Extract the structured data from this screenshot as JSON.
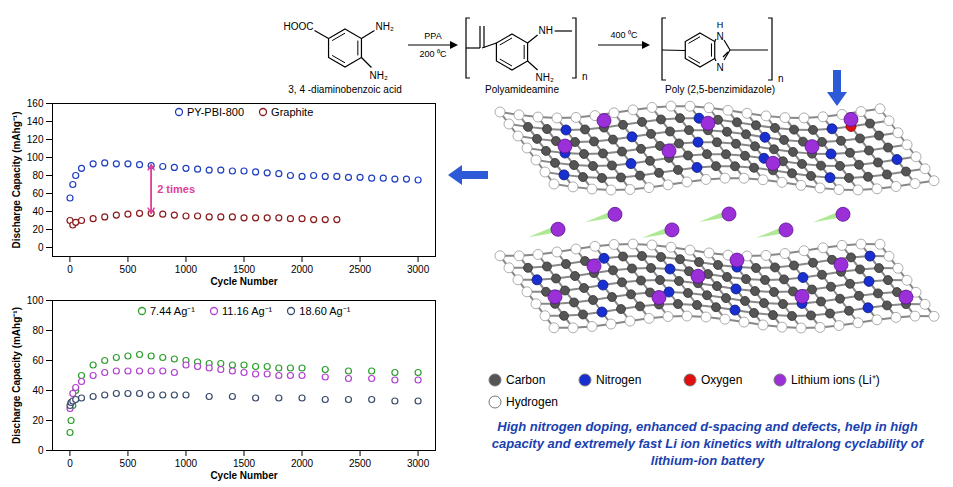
{
  "chart_data": [
    {
      "type": "scatter",
      "x_label": "Cycle Number",
      "y_label": "Discharge Capacity (mAhg⁻¹)",
      "xlim": [
        -150,
        3150
      ],
      "xticks": [
        0,
        500,
        1000,
        1500,
        2000,
        2500,
        3000
      ],
      "ylim": [
        -10,
        160
      ],
      "yticks": [
        0,
        20,
        40,
        60,
        80,
        100,
        120,
        140,
        160
      ],
      "grid": false,
      "legend": "top",
      "series": [
        {
          "name": "PY-PBI-800",
          "color": "#1f3fbf",
          "marker": "open_circle",
          "x": [
            1,
            25,
            50,
            100,
            200,
            300,
            400,
            500,
            600,
            700,
            800,
            900,
            1000,
            1100,
            1200,
            1300,
            1400,
            1500,
            1600,
            1700,
            1800,
            1900,
            2000,
            2100,
            2200,
            2300,
            2400,
            2500,
            2600,
            2700,
            2800,
            2900,
            3000
          ],
          "values": [
            55,
            70,
            80,
            88,
            93,
            94,
            93,
            93,
            92,
            91,
            90,
            89,
            88,
            87,
            86,
            86,
            85,
            85,
            84,
            83,
            82,
            80,
            79,
            80,
            79,
            79,
            78,
            78,
            77,
            77,
            76,
            76,
            75
          ]
        },
        {
          "name": "Graphite",
          "color": "#8b1a1a",
          "marker": "open_circle",
          "x": [
            1,
            25,
            50,
            100,
            200,
            300,
            400,
            500,
            600,
            700,
            800,
            900,
            1000,
            1100,
            1200,
            1300,
            1400,
            1500,
            1600,
            1700,
            1800,
            1900,
            2000,
            2100,
            2200,
            2300
          ],
          "values": [
            30,
            25,
            28,
            30,
            32,
            34,
            36,
            37,
            38,
            38,
            37,
            36,
            35,
            35,
            34,
            34,
            34,
            33,
            33,
            33,
            33,
            32,
            32,
            31,
            31,
            31
          ]
        }
      ],
      "annotations": [
        {
          "text": "2 times",
          "x": 700,
          "y": 65,
          "y_from": 38,
          "y_to": 92,
          "color": "#e0409a"
        }
      ]
    },
    {
      "type": "scatter",
      "x_label": "Cycle Number",
      "y_label": "Discharge Capacity (mAhg⁻¹)",
      "xlim": [
        -150,
        3150
      ],
      "xticks": [
        0,
        500,
        1000,
        1500,
        2000,
        2500,
        3000
      ],
      "ylim": [
        0,
        100
      ],
      "yticks": [
        0,
        20,
        40,
        60,
        80,
        100
      ],
      "grid": false,
      "legend": "top",
      "series": [
        {
          "name": "7.44 Ag⁻¹",
          "color": "#2e9e2e",
          "marker": "open_circle",
          "x": [
            1,
            10,
            25,
            50,
            100,
            200,
            300,
            400,
            500,
            600,
            700,
            800,
            900,
            1000,
            1100,
            1200,
            1300,
            1400,
            1500,
            1600,
            1700,
            1800,
            1900,
            2000,
            2200,
            2400,
            2600,
            2800,
            3000
          ],
          "values": [
            12,
            20,
            30,
            40,
            50,
            57,
            60,
            62,
            63,
            64,
            63,
            62,
            61,
            60,
            59,
            58,
            58,
            57,
            57,
            56,
            56,
            55,
            55,
            55,
            54,
            53,
            53,
            52,
            52
          ]
        },
        {
          "name": "11.16 Ag⁻¹",
          "color": "#b040d0",
          "marker": "open_circle",
          "x": [
            1,
            10,
            25,
            50,
            100,
            200,
            300,
            400,
            500,
            600,
            700,
            800,
            900,
            1000,
            1100,
            1200,
            1300,
            1400,
            1500,
            1600,
            1700,
            1800,
            1900,
            2000,
            2200,
            2400,
            2600,
            2800,
            3000
          ],
          "values": [
            28,
            32,
            38,
            42,
            46,
            50,
            52,
            53,
            53,
            53,
            53,
            53,
            52,
            57,
            56,
            55,
            54,
            53,
            52,
            51,
            51,
            50,
            50,
            50,
            49,
            48,
            48,
            47,
            47
          ]
        },
        {
          "name": "18.60 Ag⁻¹",
          "color": "#3a4a6a",
          "marker": "open_circle",
          "x": [
            1,
            10,
            25,
            50,
            100,
            200,
            300,
            400,
            500,
            600,
            700,
            800,
            900,
            1000,
            1200,
            1400,
            1600,
            1800,
            2000,
            2200,
            2400,
            2600,
            2800,
            3000
          ],
          "values": [
            30,
            32,
            33,
            34,
            35,
            36,
            37,
            38,
            38,
            38,
            37,
            37,
            37,
            37,
            36,
            36,
            35,
            35,
            35,
            34,
            34,
            34,
            33,
            33
          ]
        }
      ],
      "annotations": []
    }
  ],
  "scheme": {
    "reactant": {
      "label": "3, 4 -diaminobenzoic acid",
      "groups": [
        "HOOC",
        "NH₂",
        "NH₂"
      ]
    },
    "step1": {
      "reagent": "PPA",
      "condition": "200 ⁰C"
    },
    "intermediate": {
      "label": "Polyamideamine",
      "groups": [
        "NH",
        "NH₂"
      ],
      "repeat": "n"
    },
    "step2": {
      "condition": "400 ⁰C"
    },
    "product": {
      "label": "Poly (2,5-benzimidazole)",
      "groups": [
        "H",
        "N",
        "N"
      ],
      "repeat": "n"
    }
  },
  "illustration": {
    "legend": [
      {
        "label": "Carbon",
        "color": "#555555"
      },
      {
        "label": "Nitrogen",
        "color": "#1a2fd0"
      },
      {
        "label": "Oxygen",
        "color": "#e01010"
      },
      {
        "label": "Lithium ions (Li⁺)",
        "color": "#9b30d9"
      },
      {
        "label": "Hydrogen",
        "color": "#ffffff"
      }
    ],
    "caption": "High nitrogen doping, enhanced d-spacing and defects, help in high capacity and extremely fast Li ion kinetics with ultralong cyclability of lithium-ion battery"
  }
}
